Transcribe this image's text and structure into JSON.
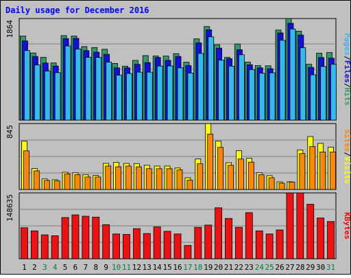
{
  "chart_data": {
    "type": "bar",
    "title": "Daily usage for December 2016",
    "categories": [
      "1",
      "2",
      "3",
      "4",
      "5",
      "6",
      "7",
      "8",
      "9",
      "10",
      "11",
      "12",
      "13",
      "14",
      "15",
      "16",
      "17",
      "18",
      "19",
      "20",
      "21",
      "22",
      "23",
      "24",
      "25",
      "26",
      "27",
      "28",
      "29",
      "30",
      "31"
    ],
    "weekend_days": [
      "3",
      "4",
      "10",
      "11",
      "17",
      "18",
      "24",
      "25",
      "31"
    ],
    "panels": [
      {
        "id": "hits",
        "max_label": "1864",
        "ylim": [
          0,
          1864
        ],
        "right_label": {
          "parts": [
            "Pages",
            "/",
            "Files",
            "/",
            "Hits"
          ]
        },
        "series": [
          {
            "name": "Hits",
            "color": "#339966",
            "values": [
              1543,
              1232,
              1152,
              1049,
              1551,
              1543,
              1349,
              1332,
              1300,
              1040,
              991,
              1096,
              1184,
              1176,
              1176,
              1220,
              1062,
              1491,
              1717,
              1384,
              1151,
              1397,
              1064,
              1000,
              997,
              1652,
              1864,
              1632,
              1024,
              1228,
              1240
            ]
          },
          {
            "name": "Files",
            "color": "#1111dd",
            "values": [
              1453,
              1168,
              1048,
              992,
              1496,
              1500,
              1275,
              1247,
              1208,
              960,
              960,
              1024,
              1056,
              1149,
              1096,
              1168,
              1000,
              1418,
              1657,
              1320,
              1128,
              1291,
              1016,
              960,
              944,
              1600,
              1776,
              1560,
              968,
              1148,
              1136
            ]
          },
          {
            "name": "Pages",
            "color": "#33bbee",
            "values": [
              1276,
              1012,
              900,
              872,
              1360,
              1304,
              1152,
              1150,
              1064,
              824,
              856,
              880,
              880,
              992,
              994,
              960,
              864,
              1224,
              1528,
              1100,
              990,
              1200,
              928,
              860,
              868,
              1464,
              1672,
              1328,
              832,
              984,
              1024
            ]
          }
        ]
      },
      {
        "id": "visits",
        "max_label": "845",
        "ylim": [
          0,
          845
        ],
        "right_label": {
          "parts": [
            "Sites",
            "/",
            "Visits"
          ]
        },
        "series": [
          {
            "name": "Visits",
            "color": "#ffff00",
            "values": [
              620,
              268,
              135,
              125,
              220,
              214,
              191,
              180,
              335,
              346,
              334,
              332,
              310,
              300,
              300,
              275,
              150,
              392,
              845,
              621,
              343,
              497,
              399,
              216,
              177,
              97,
              98,
              507,
              678,
              591,
              543
            ]
          },
          {
            "name": "Sites",
            "color": "#ff8800",
            "values": [
              495,
              238,
              115,
              110,
              200,
              190,
              160,
              160,
              300,
              290,
              300,
              290,
              266,
              266,
              266,
              250,
              120,
              330,
              710,
              540,
              310,
              390,
              350,
              190,
              150,
              80,
              95,
              460,
              550,
              480,
              480
            ]
          }
        ]
      },
      {
        "id": "kbytes",
        "max_label": "148635",
        "ylim": [
          0,
          148635
        ],
        "right_label": {
          "parts": [
            "KBytes"
          ]
        },
        "series": [
          {
            "name": "KBytes",
            "color": "#ee1111",
            "values": [
              70000,
              63000,
              54000,
              52000,
              93000,
              99000,
              96000,
              94000,
              77000,
              56000,
              55000,
              68000,
              57000,
              72000,
              62000,
              56000,
              30000,
              71000,
              76000,
              115000,
              91000,
              71000,
              104000,
              63000,
              56000,
              65000,
              148635,
              148635,
              123000,
              92000,
              84000
            ]
          }
        ]
      }
    ],
    "colors": {
      "background": "#c0c0c0",
      "title": "#0000ff",
      "label_dark": "#000000",
      "weekend_label": "#008040",
      "sites_label": "#ff8800",
      "visits_label": "#ffff00",
      "kbytes_label": "#ff0000"
    }
  }
}
